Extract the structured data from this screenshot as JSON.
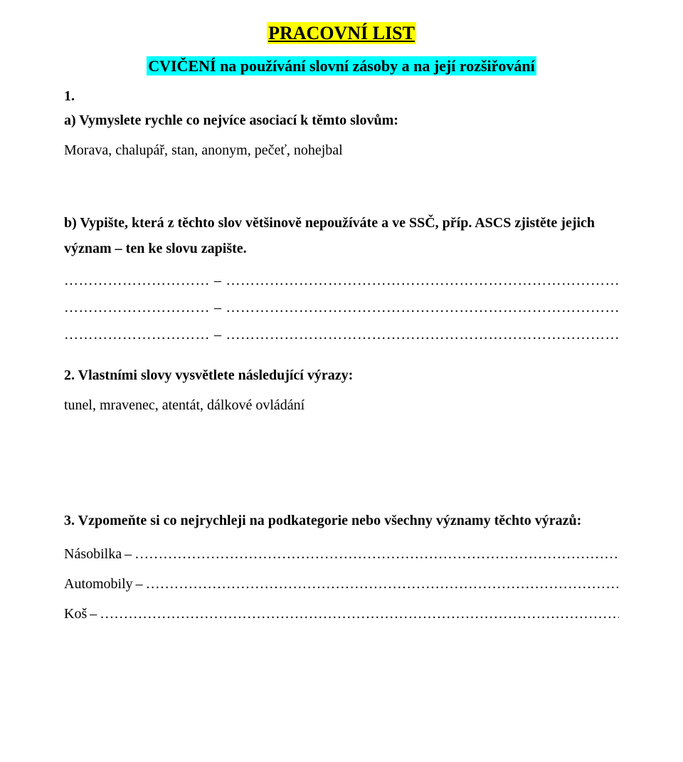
{
  "title": "PRACOVNÍ LIST",
  "subtitle": "CVIČENÍ na používání slovní zásoby a na její rozšiřování",
  "q1": {
    "number": "1.",
    "a_prompt_bold": "a) Vymyslete rychle co nejvíce asociací k těmto slovům:",
    "a_items": "Morava, chalupář, stan, anonym, pečeť, nohejbal",
    "b_prompt_bold_1": "b) Vypište, která z těchto slov většinově nepoužíváte a ve SSČ, příp. ASCS zjistěte jejich",
    "b_prompt_bold_2": "význam – ten ke slovu zapište.",
    "fill_lines": [
      {
        "left": "…………………………",
        "dash": "–",
        "right": "………………………………………………………………………….."
      },
      {
        "left": "…………………………",
        "dash": "–",
        "right": "………………………………………………………………………….."
      },
      {
        "left": "…………………………",
        "dash": "–",
        "right": "………………………………………………………………………….."
      }
    ]
  },
  "q2": {
    "heading_bold": "2. Vlastními slovy vysvětlete následující výrazy:",
    "items": "tunel, mravenec, atentát, dálkové ovládání"
  },
  "q3": {
    "heading_bold": "3. Vzpomeňte si co nejrychleji na podkategorie nebo všechny významy těchto výrazů:",
    "rows": [
      {
        "label": "Násobilka",
        "dash": "–",
        "dots": "……………………………………………………………………………………………….."
      },
      {
        "label": "Automobily",
        "dash": "–",
        "dots": "……………………………………………………………………………………………..."
      },
      {
        "label": "Koš",
        "dash": "–",
        "dots": "………………………………………………………………………………………………………"
      }
    ]
  },
  "colors": {
    "title_highlight": "#ffff00",
    "subtitle_highlight": "#00ffff",
    "text": "#000000",
    "background": "#ffffff"
  }
}
